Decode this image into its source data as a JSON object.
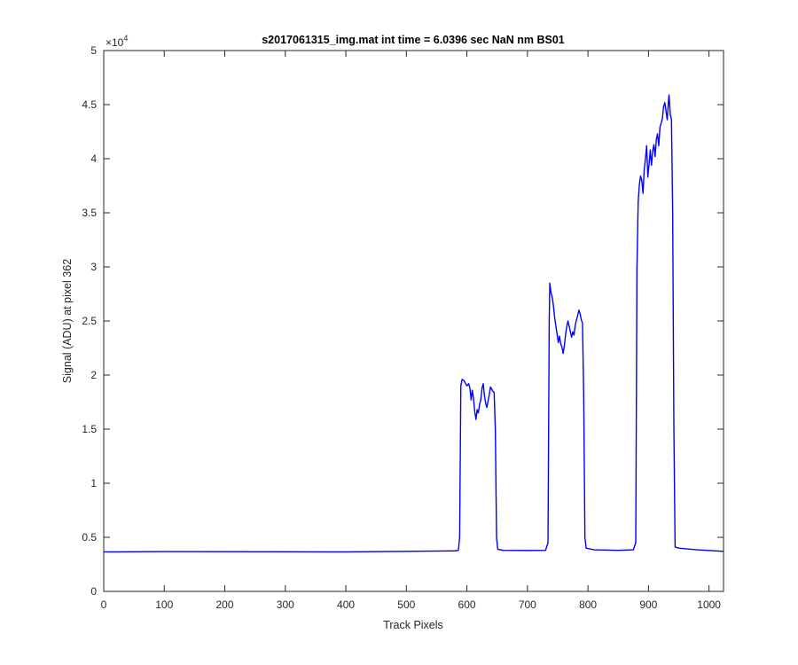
{
  "chart_data": {
    "type": "line",
    "title": "s2017061315_img.mat int time = 6.0396 sec  NaN nm BS01",
    "xlabel": "Track Pixels",
    "ylabel": "Signal (ADU) at pixel 362",
    "xlim": [
      0,
      1024
    ],
    "ylim": [
      0,
      50000
    ],
    "x_ticks": [
      0,
      100,
      200,
      300,
      400,
      500,
      600,
      700,
      800,
      900,
      1000
    ],
    "y_ticks": [
      0,
      0.5,
      1,
      1.5,
      2,
      2.5,
      3,
      3.5,
      4,
      4.5,
      5
    ],
    "y_tick_labels": [
      "0",
      "0.5",
      "1",
      "1.5",
      "2",
      "2.5",
      "3",
      "3.5",
      "4",
      "4.5",
      "5"
    ],
    "y_exponent_base": "×10",
    "y_exponent_power": "4",
    "grid": false,
    "line_color": "#0000FF",
    "series": [
      {
        "points": [
          [
            0,
            3650
          ],
          [
            100,
            3680
          ],
          [
            200,
            3670
          ],
          [
            300,
            3660
          ],
          [
            400,
            3650
          ],
          [
            500,
            3700
          ],
          [
            580,
            3750
          ],
          [
            586,
            3800
          ],
          [
            588,
            5000
          ],
          [
            590,
            19000
          ],
          [
            592,
            19600
          ],
          [
            595,
            19500
          ],
          [
            600,
            19000
          ],
          [
            603,
            19200
          ],
          [
            605,
            18800
          ],
          [
            607,
            17700
          ],
          [
            609,
            18600
          ],
          [
            611,
            17800
          ],
          [
            613,
            16600
          ],
          [
            615,
            15900
          ],
          [
            617,
            16800
          ],
          [
            619,
            16500
          ],
          [
            621,
            17300
          ],
          [
            623,
            17700
          ],
          [
            625,
            18800
          ],
          [
            627,
            19200
          ],
          [
            629,
            18100
          ],
          [
            631,
            17400
          ],
          [
            633,
            17000
          ],
          [
            635,
            17600
          ],
          [
            637,
            18200
          ],
          [
            639,
            18900
          ],
          [
            641,
            18700
          ],
          [
            643,
            18500
          ],
          [
            645,
            18400
          ],
          [
            647,
            15000
          ],
          [
            649,
            5000
          ],
          [
            651,
            3900
          ],
          [
            660,
            3800
          ],
          [
            700,
            3780
          ],
          [
            730,
            3800
          ],
          [
            734,
            4500
          ],
          [
            736,
            25000
          ],
          [
            737,
            28500
          ],
          [
            739,
            27600
          ],
          [
            741,
            27200
          ],
          [
            743,
            26400
          ],
          [
            745,
            25300
          ],
          [
            747,
            24500
          ],
          [
            749,
            23800
          ],
          [
            751,
            23000
          ],
          [
            753,
            23600
          ],
          [
            755,
            22900
          ],
          [
            757,
            22600
          ],
          [
            759,
            22000
          ],
          [
            761,
            22700
          ],
          [
            763,
            23700
          ],
          [
            765,
            24500
          ],
          [
            767,
            25000
          ],
          [
            769,
            24500
          ],
          [
            771,
            24000
          ],
          [
            773,
            23500
          ],
          [
            775,
            24000
          ],
          [
            777,
            23700
          ],
          [
            779,
            24600
          ],
          [
            781,
            25100
          ],
          [
            783,
            25500
          ],
          [
            785,
            26000
          ],
          [
            787,
            25700
          ],
          [
            789,
            25100
          ],
          [
            791,
            24800
          ],
          [
            793,
            18000
          ],
          [
            795,
            5000
          ],
          [
            797,
            4000
          ],
          [
            810,
            3850
          ],
          [
            850,
            3800
          ],
          [
            875,
            3850
          ],
          [
            879,
            4500
          ],
          [
            881,
            30000
          ],
          [
            883,
            36000
          ],
          [
            885,
            37600
          ],
          [
            887,
            38400
          ],
          [
            889,
            38000
          ],
          [
            891,
            36800
          ],
          [
            893,
            39000
          ],
          [
            895,
            40000
          ],
          [
            897,
            41200
          ],
          [
            899,
            38300
          ],
          [
            901,
            39500
          ],
          [
            903,
            40800
          ],
          [
            905,
            39400
          ],
          [
            907,
            40700
          ],
          [
            909,
            41300
          ],
          [
            911,
            40200
          ],
          [
            913,
            41800
          ],
          [
            915,
            42300
          ],
          [
            917,
            41200
          ],
          [
            919,
            42900
          ],
          [
            921,
            43300
          ],
          [
            923,
            43700
          ],
          [
            925,
            44800
          ],
          [
            927,
            45200
          ],
          [
            929,
            44400
          ],
          [
            931,
            43600
          ],
          [
            933,
            45300
          ],
          [
            934,
            45900
          ],
          [
            936,
            44100
          ],
          [
            938,
            43600
          ],
          [
            940,
            35000
          ],
          [
            942,
            15000
          ],
          [
            944,
            4100
          ],
          [
            950,
            4000
          ],
          [
            980,
            3850
          ],
          [
            1024,
            3700
          ]
        ]
      }
    ]
  }
}
